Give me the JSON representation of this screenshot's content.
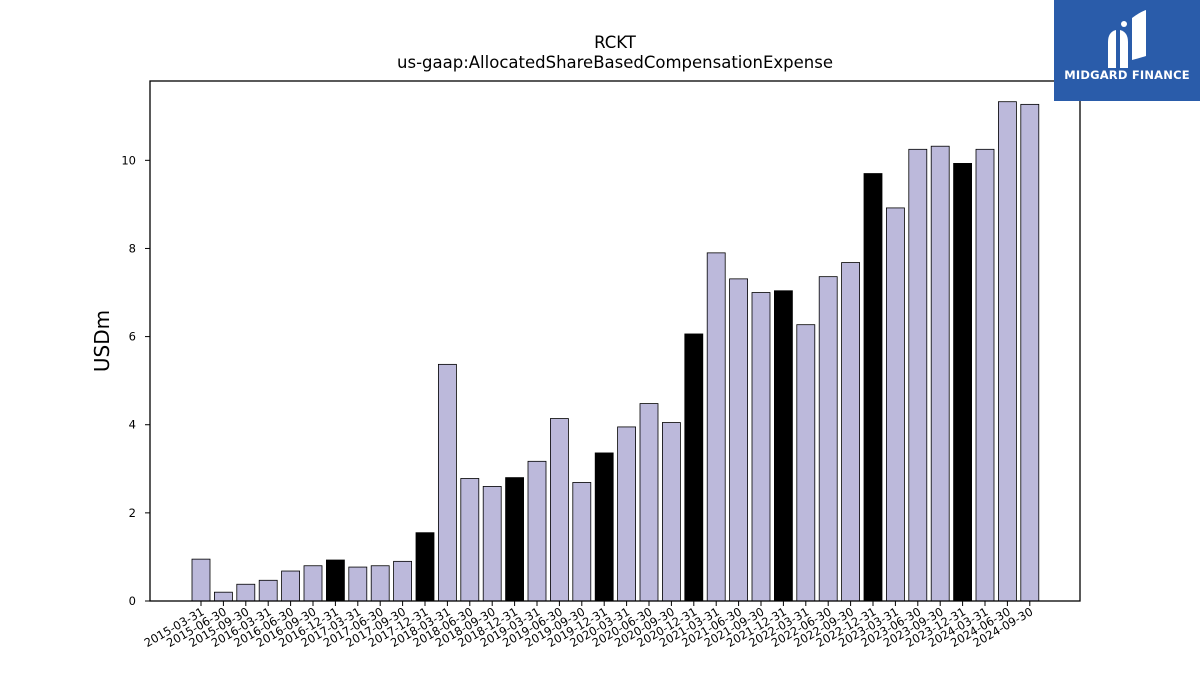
{
  "logo": {
    "text": "MIDGARD FINANCE",
    "background": "#2a5caa",
    "icon": "midgard-m-logo-icon"
  },
  "chart_data": {
    "type": "bar",
    "title": "RCKT",
    "subtitle": "us-gaap:AllocatedShareBasedCompensationExpense",
    "xlabel": "",
    "ylabel": "USDm",
    "ylim": [
      0,
      11.8
    ],
    "yticks": [
      0,
      2,
      4,
      6,
      8,
      10
    ],
    "grid": false,
    "colors": {
      "quarter": "#bcb9db",
      "year_end": "#000000",
      "edge": "#000000"
    },
    "categories": [
      "2015-03-31",
      "2015-06-30",
      "2015-09-30",
      "2016-03-31",
      "2016-06-30",
      "2016-09-30",
      "2016-12-31",
      "2017-03-31",
      "2017-06-30",
      "2017-09-30",
      "2017-12-31",
      "2018-03-31",
      "2018-06-30",
      "2018-09-30",
      "2018-12-31",
      "2019-03-31",
      "2019-06-30",
      "2019-09-30",
      "2019-12-31",
      "2020-03-31",
      "2020-06-30",
      "2020-09-30",
      "2020-12-31",
      "2021-03-31",
      "2021-06-30",
      "2021-09-30",
      "2021-12-31",
      "2022-03-31",
      "2022-06-30",
      "2022-09-30",
      "2022-12-31",
      "2023-03-31",
      "2023-06-30",
      "2023-09-30",
      "2023-12-31",
      "2024-03-31",
      "2024-06-30",
      "2024-09-30"
    ],
    "values": [
      0.95,
      0.2,
      0.38,
      0.47,
      0.68,
      0.8,
      0.93,
      0.77,
      0.8,
      0.9,
      1.55,
      5.37,
      2.78,
      2.6,
      2.8,
      3.17,
      4.14,
      2.69,
      3.36,
      3.95,
      4.48,
      4.05,
      6.06,
      7.9,
      7.31,
      7.0,
      7.04,
      6.27,
      7.36,
      7.68,
      9.7,
      8.92,
      10.25,
      10.32,
      9.93,
      10.25,
      11.33,
      11.27
    ],
    "year_end": [
      false,
      false,
      false,
      false,
      false,
      false,
      true,
      false,
      false,
      false,
      true,
      false,
      false,
      false,
      true,
      false,
      false,
      false,
      true,
      false,
      false,
      false,
      true,
      false,
      false,
      false,
      true,
      false,
      false,
      false,
      true,
      false,
      false,
      false,
      true,
      false,
      false,
      false
    ]
  }
}
